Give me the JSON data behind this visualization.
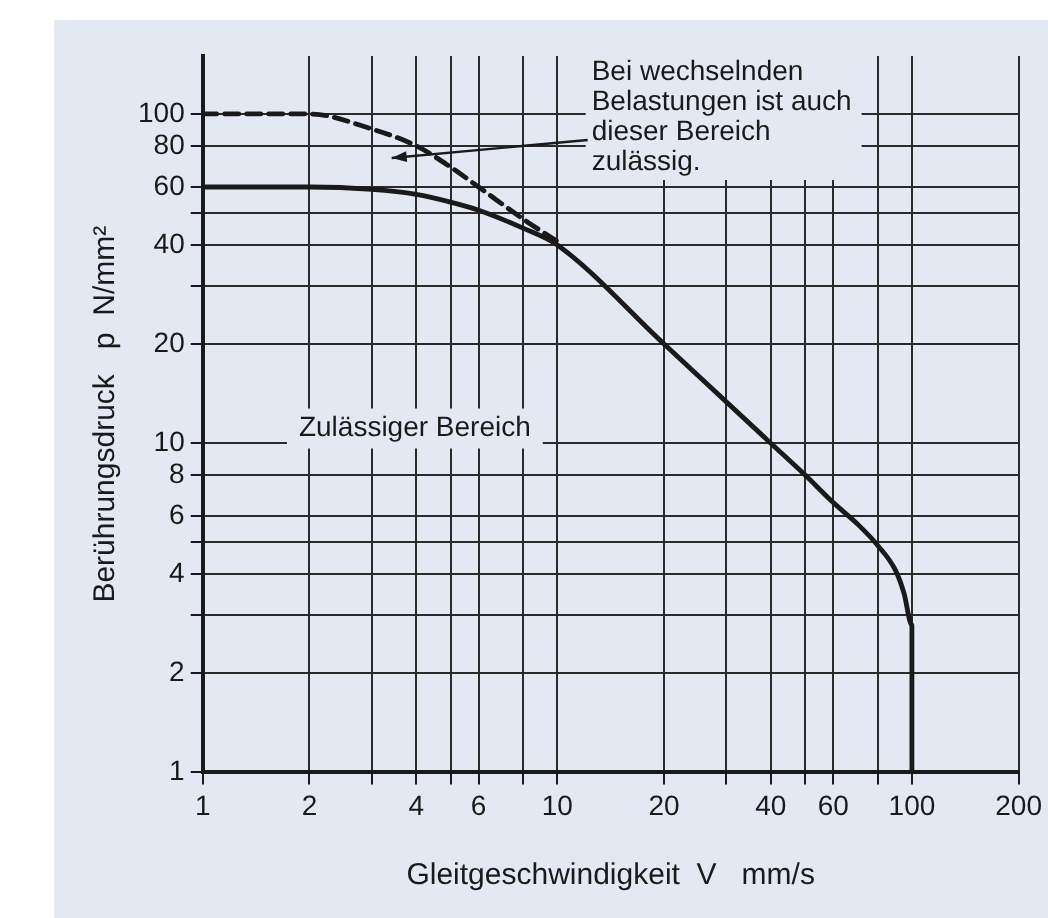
{
  "chart_data": {
    "type": "line",
    "xlabel": "Gleitgeschwindigkeit  V   mm/s",
    "ylabel": "Berührungsdruck   p  N/mm²",
    "log": "xy",
    "grid": true,
    "legend": false,
    "marker": "none",
    "xlim": [
      1,
      200
    ],
    "ylim": [
      1,
      150
    ],
    "xticks": [
      1,
      2,
      {
        "value": 3,
        "label": null
      },
      4,
      {
        "value": 5,
        "label": null
      },
      6,
      {
        "value": 8,
        "label": null
      },
      10,
      20,
      {
        "value": 30,
        "label": null
      },
      40,
      {
        "value": 50,
        "label": null
      },
      60,
      {
        "value": 80,
        "label": null
      },
      100,
      200
    ],
    "yticks": [
      1,
      2,
      {
        "value": 3,
        "label": null
      },
      4,
      {
        "value": 5,
        "label": null
      },
      6,
      8,
      10,
      20,
      {
        "value": 30,
        "label": null
      },
      40,
      {
        "value": 50,
        "label": null
      },
      60,
      80,
      100
    ],
    "series": [
      {
        "color": "#1a1a1a",
        "line_style": "solid",
        "x": [
          1,
          2,
          3,
          4,
          5,
          6,
          8,
          10,
          20,
          40,
          50,
          60,
          70,
          80,
          90,
          95,
          100,
          100
        ],
        "values": [
          60,
          60,
          59,
          57,
          54,
          51,
          45,
          40,
          20,
          10,
          8,
          6.6,
          5.7,
          4.9,
          4.1,
          3.5,
          2.8,
          1
        ]
      },
      {
        "color": "#1a1a1a",
        "line_style": "dashed",
        "x": [
          1,
          2,
          3,
          4,
          5,
          6,
          8,
          10
        ],
        "values": [
          100,
          100,
          90,
          80,
          69,
          60,
          48,
          41
        ]
      }
    ],
    "annotations": [
      "Bei wechselnden Belastungen ist auch dieser Bereich zulässig.",
      "Zulässiger Bereich"
    ]
  }
}
